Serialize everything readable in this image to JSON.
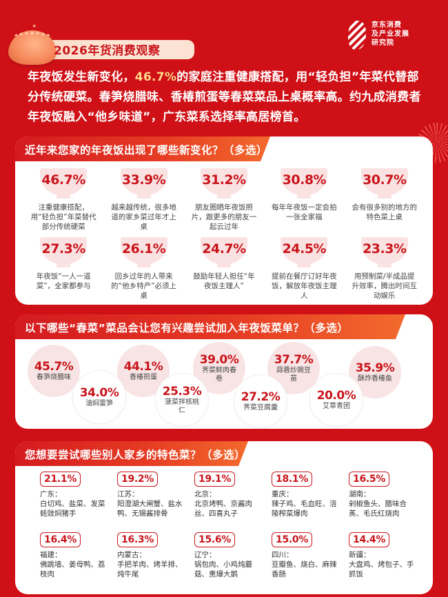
{
  "header": {
    "title": "2026年货消费观察",
    "logo_lines": [
      "京东消费",
      "及产业发展",
      "研究院"
    ]
  },
  "intro": {
    "before": "年夜饭发生新变化，",
    "highlight": "46.7%",
    "after": "的家庭注重健康搭配，用“轻负担”年菜代替部分传统硬菜。春笋烧腊味、香椿煎蛋等春菜菜品上桌概率高。约九成消费者年夜饭融入“他乡味道”，广东菜系选择率高居榜首。"
  },
  "section1": {
    "title": "近年来您家的年夜饭出现了哪些新变化？（多选）",
    "items": [
      {
        "pct": "46.7%",
        "desc": "注重健康搭配，用“轻负担”年菜替代部分传统硬菜"
      },
      {
        "pct": "33.9%",
        "desc": "越来越传统，很多地道的家乡菜过年才上桌"
      },
      {
        "pct": "31.2%",
        "desc": "朋友圈晒年夜饭照片，跟更多的朋友一起云过年"
      },
      {
        "pct": "30.8%",
        "desc": "每年年夜饭一定会拍一张全家福"
      },
      {
        "pct": "30.7%",
        "desc": "会有很多别的地方的特色菜上桌"
      },
      {
        "pct": "27.3%",
        "desc": "年夜饭“一人一道菜”，全家都参与"
      },
      {
        "pct": "26.1%",
        "desc": "回乡过年的人带来的“他乡特产”必须上桌"
      },
      {
        "pct": "24.7%",
        "desc": "鼓励年轻人担任“年夜饭主理人”"
      },
      {
        "pct": "24.5%",
        "desc": "提前在餐厅订好年夜饭，解放年夜饭主理人"
      },
      {
        "pct": "23.3%",
        "desc": "用预制菜/半成品提升效率，腾出时间互动娱乐"
      }
    ]
  },
  "section2": {
    "title": "以下哪些“春菜”菜品会让您有兴趣尝试加入年夜饭菜单？（多选）",
    "items": [
      {
        "pct": "45.7%",
        "name": "春笋烧腊味"
      },
      {
        "pct": "44.1%",
        "name": "香椿煎蛋"
      },
      {
        "pct": "39.0%",
        "name": "荠菜鲜肉春卷"
      },
      {
        "pct": "37.7%",
        "name": "蒜蓉炒豌豆苗"
      },
      {
        "pct": "35.9%",
        "name": "酥炸香椿鱼"
      },
      {
        "pct": "34.0%",
        "name": "油焖雷笋"
      },
      {
        "pct": "25.3%",
        "name": "菠菜拌核桃仁"
      },
      {
        "pct": "27.2%",
        "name": "荠菜豆腐羹"
      },
      {
        "pct": "20.0%",
        "name": "艾草青团"
      }
    ]
  },
  "section3": {
    "title": "您想要尝试哪些别人家乡的特色菜？（多选）",
    "items": [
      {
        "pct": "21.1%",
        "region": "广东：",
        "foods": "白切鸡、盐菜、发菜蚝豉焖猪手"
      },
      {
        "pct": "19.2%",
        "region": "江苏：",
        "foods": "阳澄湖大闸蟹、盐水鸭、无锡酱排骨"
      },
      {
        "pct": "19.1%",
        "region": "北京：",
        "foods": "北京烤鸭、京酱肉丝、四喜丸子"
      },
      {
        "pct": "18.1%",
        "region": "重庆：",
        "foods": "辣子鸡、毛血旺、涪陵榨菜爆肉"
      },
      {
        "pct": "16.5%",
        "region": "湖南：",
        "foods": "剁椒鱼头、腊味合蒸、毛氏红烧肉"
      },
      {
        "pct": "16.4%",
        "region": "福建：",
        "foods": "佛跳墙、姜母鸭、荔枝肉"
      },
      {
        "pct": "16.3%",
        "region": "内蒙古：",
        "foods": "手把羊肉、烤羊排、炖牛尾"
      },
      {
        "pct": "15.6%",
        "region": "辽宁：",
        "foods": "锅包肉、小鸡炖蘑菇、熏爆大鹅"
      },
      {
        "pct": "15.0%",
        "region": "四川：",
        "foods": "豆瓣鱼、烧白、麻辣香肠"
      },
      {
        "pct": "14.4%",
        "region": "新疆：",
        "foods": "大盘鸡、烤包子、手抓饭"
      }
    ]
  },
  "colors": {
    "background": "#cf1016",
    "accent_red": "#c8141b",
    "highlight_yellow": "#ffd88a",
    "bubble_pink": "#f8e4e4"
  }
}
